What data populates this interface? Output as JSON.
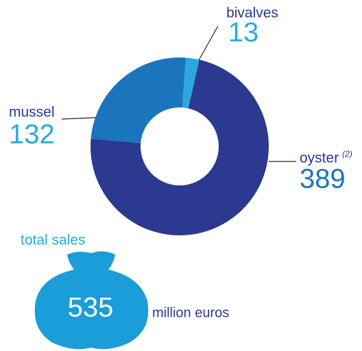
{
  "chart_data": {
    "type": "donut",
    "categories": [
      "bivalves",
      "oyster",
      "mussel"
    ],
    "values": [
      13,
      389,
      132
    ],
    "colors": [
      "#29a9e0",
      "#2b3990",
      "#1b75bc"
    ],
    "annotation": "(2)",
    "total": {
      "label": "total sales",
      "value": 535,
      "unit": "million euros"
    }
  }
}
